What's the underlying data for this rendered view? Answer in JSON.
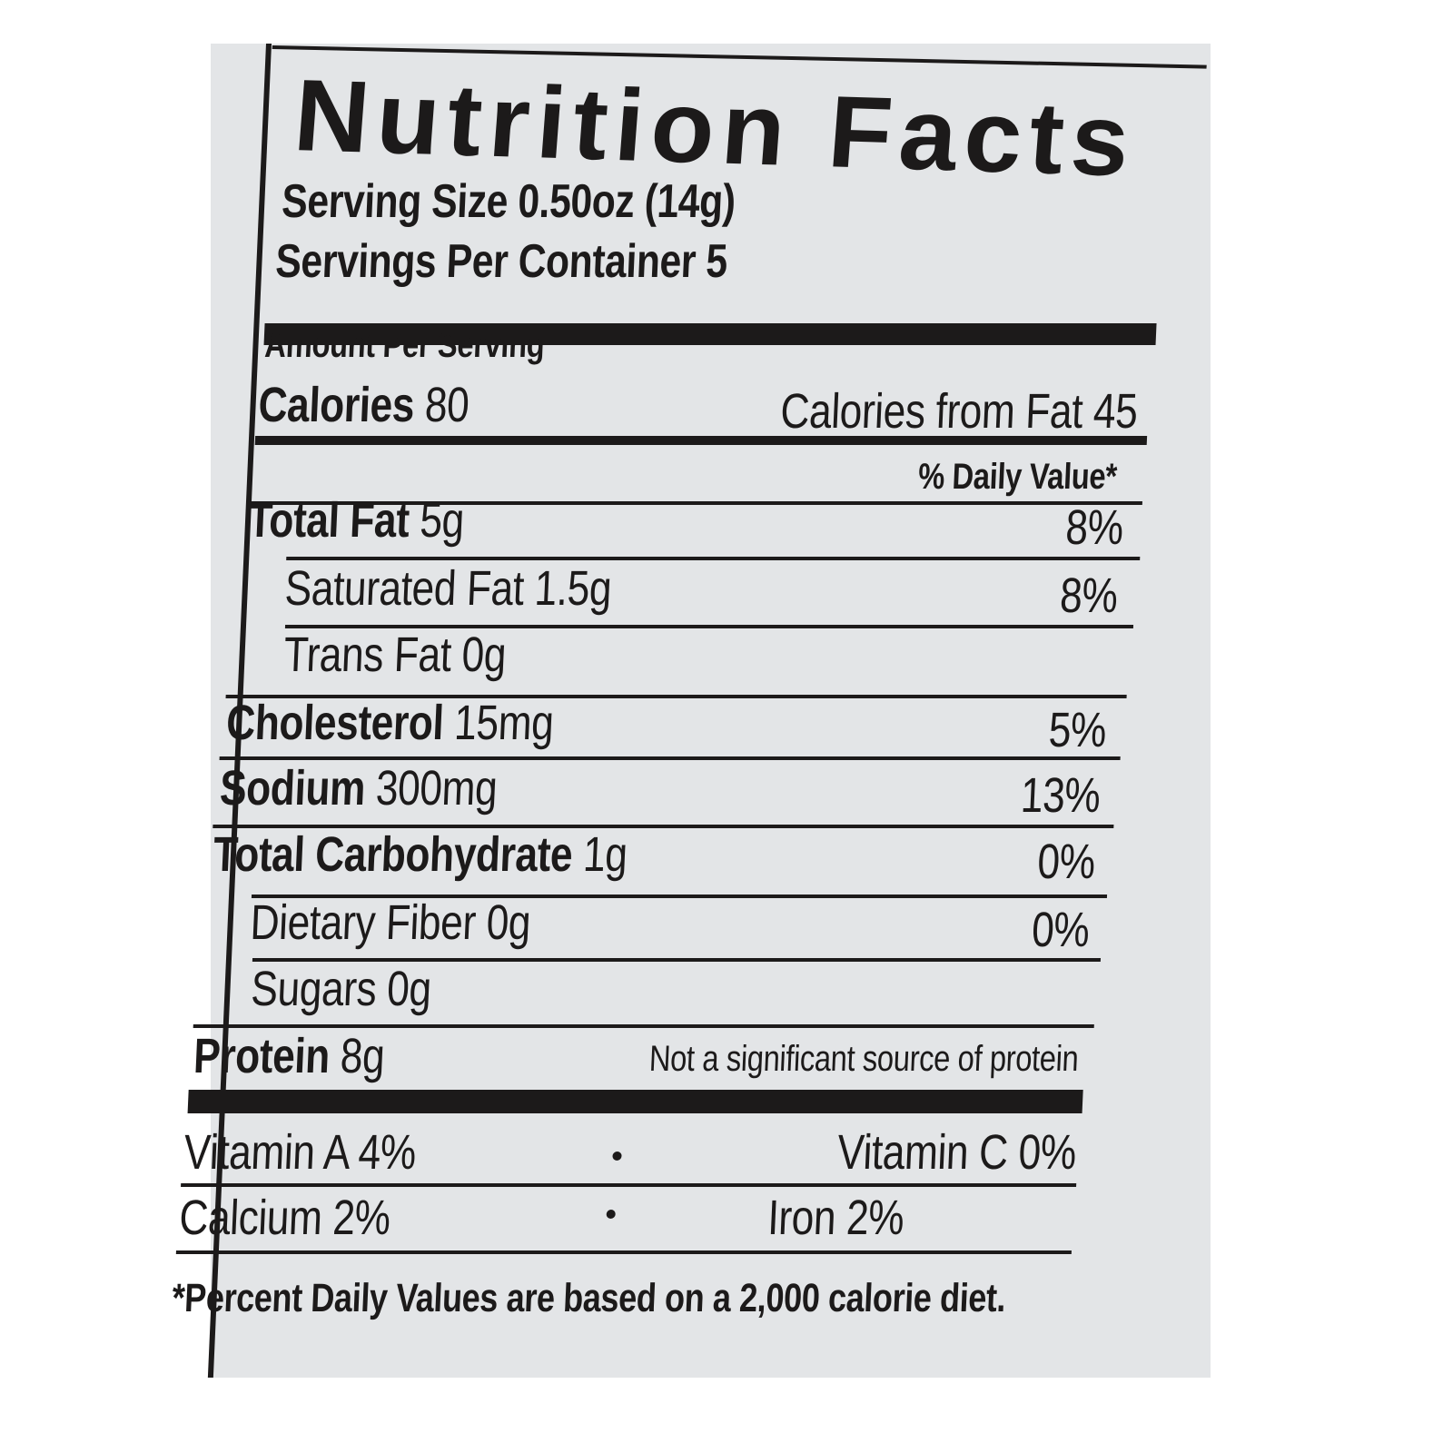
{
  "title": "Nutrition Facts",
  "serving_size": "Serving Size 0.50oz (14g)",
  "servings_per_container": "Servings Per Container 5",
  "amount_per_serving": "Amount Per Serving",
  "calories": {
    "label": "Calories",
    "value": "80",
    "from_fat": "Calories from Fat 45"
  },
  "daily_value_header": "% Daily Value*",
  "nutrients": [
    {
      "label": "Total Fat",
      "amount": "5g",
      "dv": "8%"
    },
    {
      "label": "Saturated Fat",
      "amount": "1.5g",
      "dv": "8%"
    },
    {
      "label": "Trans Fat",
      "amount": "0g",
      "dv": ""
    },
    {
      "label": "Cholesterol",
      "amount": "15mg",
      "dv": "5%"
    },
    {
      "label": "Sodium",
      "amount": "300mg",
      "dv": "13%"
    },
    {
      "label": "Total Carbohydrate",
      "amount": "1g",
      "dv": "0%"
    },
    {
      "label": "Dietary Fiber",
      "amount": "0g",
      "dv": "0%"
    },
    {
      "label": "Sugars",
      "amount": "0g",
      "dv": ""
    },
    {
      "label": "Protein",
      "amount": "8g",
      "dv": "Not a significant source of protein"
    }
  ],
  "vitamins": [
    {
      "left": "Vitamin A 4%",
      "right": "Vitamin C 0%"
    },
    {
      "left": "Calcium 2%",
      "right": "Iron 2%"
    }
  ],
  "footnote": "*Percent Daily Values are based on a 2,000 calorie diet."
}
